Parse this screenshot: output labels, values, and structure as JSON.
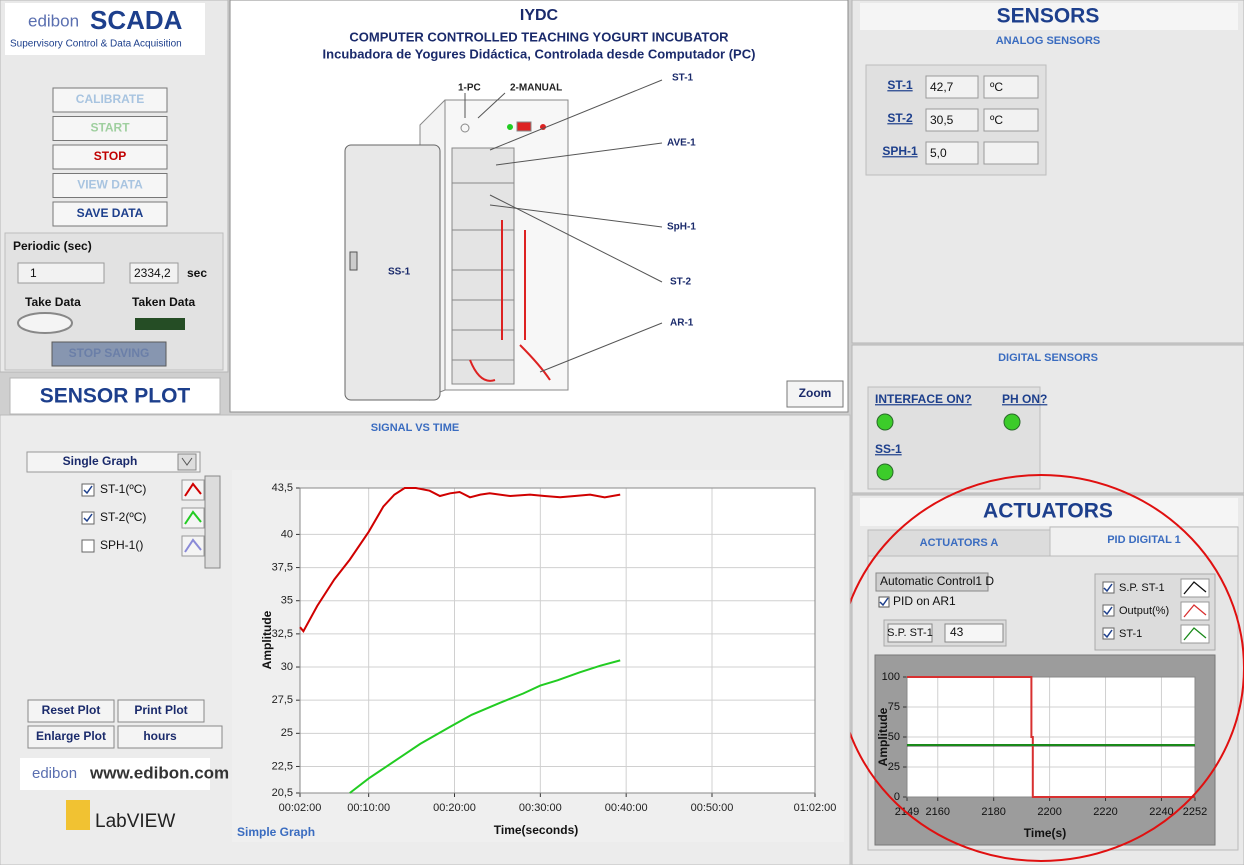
{
  "logo": {
    "brand": "edibon",
    "product": "SCADA",
    "subtitle": "Supervisory Control & Data Acquisition"
  },
  "controls": {
    "buttons": [
      {
        "label": "CALIBRATE",
        "color": "#a8c4e0"
      },
      {
        "label": "START",
        "color": "#9fcf9f"
      },
      {
        "label": "STOP",
        "color": "#c00000"
      },
      {
        "label": "VIEW DATA",
        "color": "#a8c4e0"
      },
      {
        "label": "SAVE DATA",
        "color": "#1d3f8c"
      }
    ],
    "periodic_label": "Periodic (sec)",
    "periodic_value": "1",
    "elapsed": "2334,2",
    "elapsed_unit": "sec",
    "take_data": "Take Data",
    "taken_data": "Taken Data",
    "stop_saving": "STOP SAVING"
  },
  "diagram": {
    "code": "IYDC",
    "title": "COMPUTER CONTROLLED TEACHING YOGURT INCUBATOR",
    "subtitle": "Incubadora de Yogures Didáctica, Controlada desde Computador (PC)",
    "labels": [
      "1-PC",
      "2-MANUAL",
      "ST-1",
      "AVE-1",
      "SpH-1",
      "SS-1",
      "ST-2",
      "AR-1"
    ],
    "zoom": "Zoom"
  },
  "sensors": {
    "title": "SENSORS",
    "analog_title": "ANALOG SENSORS",
    "analog": [
      {
        "name": "ST-1",
        "value": "42,7",
        "unit": "ºC"
      },
      {
        "name": "ST-2",
        "value": "30,5",
        "unit": "ºC"
      },
      {
        "name": "SPH-1",
        "value": "5,0"
      }
    ],
    "digital_title": "DIGITAL SENSORS",
    "digital": [
      {
        "label": "INTERFACE ON?",
        "on": true
      },
      {
        "label": "PH ON?",
        "on": true
      },
      {
        "label": "SS-1",
        "on": true
      }
    ]
  },
  "sensor_plot": {
    "title": "SENSOR PLOT",
    "graph_mode": "Single Graph",
    "reset": "Reset Plot",
    "print": "Print Plot",
    "enlarge": "Enlarge Plot",
    "units": "hours",
    "website": "www.edibon.com",
    "labview": "LabVIEW",
    "graph_caption": "Simple Graph",
    "chart": {
      "type": "line",
      "title": "SIGNAL VS TIME",
      "x_label": "Time(seconds)",
      "y_label": "Amplitude",
      "xlim": [
        2,
        62
      ],
      "xticks": [
        {
          "value": 2,
          "label": "00:02:00"
        },
        {
          "value": 10,
          "label": "00:10:00"
        },
        {
          "value": 20,
          "label": "00:20:00"
        },
        {
          "value": 30,
          "label": "00:30:00"
        },
        {
          "value": 40,
          "label": "00:40:00"
        },
        {
          "value": 50,
          "label": "00:50:00"
        },
        {
          "value": 62,
          "label": "01:02:00"
        }
      ],
      "ylim": [
        20.5,
        43.5
      ],
      "yticks": [
        {
          "value": 20.5,
          "label": "20,5"
        },
        {
          "value": 22.5,
          "label": "22,5"
        },
        25,
        {
          "value": 27.5,
          "label": "27,5"
        },
        30,
        {
          "value": 32.5,
          "label": "32,5"
        },
        35,
        {
          "value": 37.5,
          "label": "37,5"
        },
        40,
        {
          "value": 43.5,
          "label": "43,5"
        }
      ],
      "grid": true,
      "series": [
        {
          "name": "ST-1(ºC)",
          "color": "#d00000",
          "checked": true,
          "x": [
            2,
            2.4,
            4,
            6,
            7.8,
            10,
            11.7,
            13,
            14.2,
            15.5,
            17.1,
            18.3,
            19.5,
            20.6,
            21.8,
            23,
            24.1,
            26.5,
            28.8,
            30.5,
            32.3,
            34,
            35.8,
            37.5,
            39.3
          ],
          "values": [
            33.0,
            32.7,
            34.6,
            36.6,
            38.1,
            40.2,
            42.1,
            43.0,
            43.5,
            43.5,
            43.3,
            42.9,
            43.1,
            43.2,
            42.8,
            43.0,
            43.1,
            42.9,
            43.0,
            42.9,
            42.8,
            42.9,
            43.0,
            42.8,
            43.0
          ]
        },
        {
          "name": "ST-2(ºC)",
          "color": "#22cc22",
          "checked": true,
          "x": [
            7.8,
            10,
            13.7,
            16,
            19.5,
            22,
            25.3,
            28,
            30,
            32,
            34.6,
            37,
            39.3
          ],
          "values": [
            20.5,
            21.6,
            23.2,
            24.2,
            25.5,
            26.4,
            27.3,
            28.0,
            28.6,
            29.0,
            29.6,
            30.1,
            30.5
          ]
        },
        {
          "name": "SPH-1()",
          "color": "#8a8ad8",
          "checked": false,
          "x": [],
          "values": []
        }
      ]
    }
  },
  "actuators": {
    "title": "ACTUATORS",
    "tabs": [
      "ACTUATORS A",
      "PID DIGITAL 1"
    ],
    "control_title": "Automatic Control1 D",
    "pid_toggle": "PID on AR1",
    "setpoint_label": "S.P. ST-1",
    "setpoint_value": "43",
    "chart": {
      "type": "line",
      "x_label": "Time(s)",
      "y_label": "Amplitude",
      "xlim": [
        2149,
        2252
      ],
      "xticks": [
        2149,
        2160,
        2180,
        2200,
        2220,
        2240,
        2252
      ],
      "ylim": [
        0,
        100
      ],
      "yticks": [
        0,
        25,
        50,
        75,
        100
      ],
      "grid": true,
      "series": [
        {
          "name": "S.P. ST-1",
          "color": "#111111",
          "checked": true,
          "x": [
            2149,
            2252
          ],
          "values": [
            43,
            43
          ]
        },
        {
          "name": "Output(%)",
          "color": "#d83030",
          "checked": true,
          "x": [
            2149,
            2193.5,
            2193.5,
            2194,
            2194,
            2252
          ],
          "values": [
            100,
            100,
            50,
            50,
            0,
            0
          ]
        },
        {
          "name": "ST-1",
          "color": "#1a8a1a",
          "checked": true,
          "x": [
            2149,
            2252
          ],
          "values": [
            43.3,
            43.3
          ]
        }
      ]
    }
  }
}
